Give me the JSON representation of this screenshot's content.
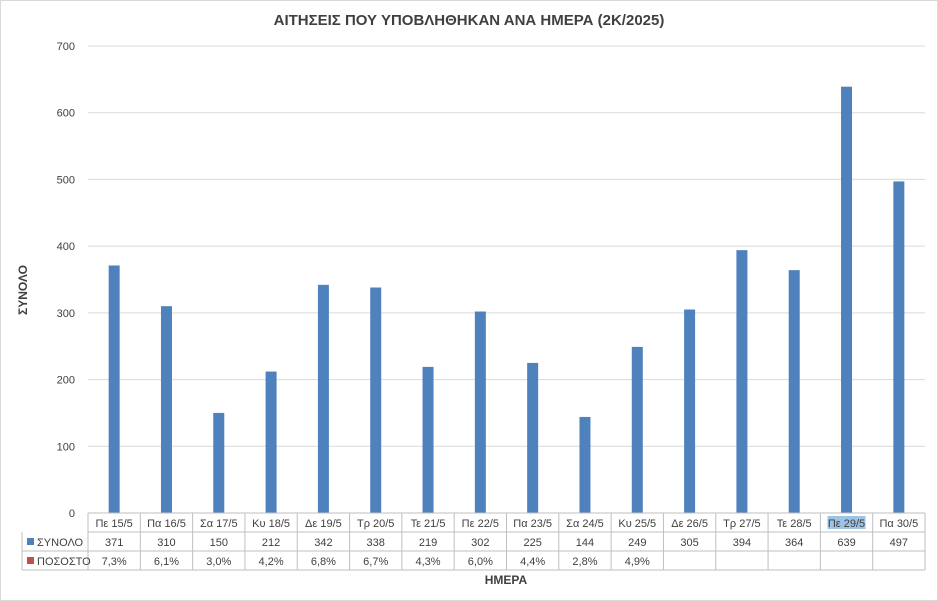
{
  "chart_data": {
    "type": "bar",
    "title": "ΑΙΤΗΣΕΙΣ ΠΟΥ ΥΠΟΒΛΗΘΗΚΑΝ ΑΝΑ ΗΜΕΡΑ (2Κ/2025)",
    "xlabel": "ΗΜΕΡΑ",
    "ylabel": "ΣΥΝΟΛΟ",
    "ylim": [
      0,
      700
    ],
    "yticks": [
      "0",
      "100",
      "200",
      "300",
      "400",
      "500",
      "600",
      "700"
    ],
    "grid": true,
    "legend": "data-table-left",
    "categories": [
      "Πε 15/5",
      "Πα 16/5",
      "Σα 17/5",
      "Κυ 18/5",
      "Δε 19/5",
      "Τρ 20/5",
      "Τε 21/5",
      "Πε 22/5",
      "Πα 23/5",
      "Σα 24/5",
      "Κυ 25/5",
      "Δε 26/5",
      "Τρ 27/5",
      "Τε 28/5",
      "Πε 29/5",
      "Πα 30/5"
    ],
    "highlighted_category": "Πε 29/5",
    "series": [
      {
        "name": "ΣΥΝΟΛΟ",
        "color": "#4f81bd",
        "values": [
          371,
          310,
          150,
          212,
          342,
          338,
          219,
          302,
          225,
          144,
          249,
          305,
          394,
          364,
          639,
          497
        ],
        "labels": [
          "371",
          "310",
          "150",
          "212",
          "342",
          "338",
          "219",
          "302",
          "225",
          "144",
          "249",
          "305",
          "394",
          "364",
          "639",
          "497"
        ]
      },
      {
        "name": "ΠΟΣΟΣΤΟ",
        "color": "#c0504d",
        "values": [
          7.3,
          6.1,
          3.0,
          4.2,
          6.8,
          6.7,
          4.3,
          6.0,
          4.4,
          2.8,
          4.9,
          null,
          null,
          null,
          null,
          null
        ],
        "labels": [
          "7,3%",
          "6,1%",
          "3,0%",
          "4,2%",
          "6,8%",
          "6,7%",
          "4,3%",
          "6,0%",
          "4,4%",
          "2,8%",
          "4,9%",
          "",
          "",
          "",
          "",
          ""
        ]
      }
    ]
  }
}
